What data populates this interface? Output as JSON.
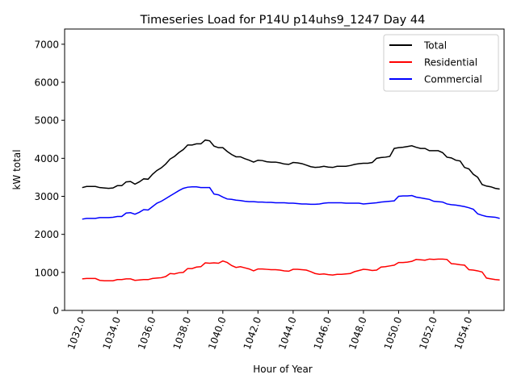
{
  "chart_data": {
    "type": "line",
    "title": "Timeseries Load for P14U p14uhs9_1247  Day 44",
    "xlabel": "Hour of Year",
    "ylabel": "kW total",
    "xlim": [
      1031.0,
      1056.0
    ],
    "ylim": [
      0,
      7400
    ],
    "x_ticks": [
      1032,
      1034,
      1036,
      1038,
      1040,
      1042,
      1044,
      1046,
      1048,
      1050,
      1052,
      1054
    ],
    "x_tick_labels": [
      "1032.0",
      "1034.0",
      "1036.0",
      "1038.0",
      "1040.0",
      "1042.0",
      "1044.0",
      "1046.0",
      "1048.0",
      "1050.0",
      "1052.0",
      "1054.0"
    ],
    "y_ticks": [
      0,
      1000,
      2000,
      3000,
      4000,
      5000,
      6000,
      7000
    ],
    "y_tick_labels": [
      "0",
      "1000",
      "2000",
      "3000",
      "4000",
      "5000",
      "6000",
      "7000"
    ],
    "grid": false,
    "legend_position": "top-right",
    "x": [
      1032.0,
      1032.25,
      1032.5,
      1032.75,
      1033.0,
      1033.25,
      1033.5,
      1033.75,
      1034.0,
      1034.25,
      1034.5,
      1034.75,
      1035.0,
      1035.25,
      1035.5,
      1035.75,
      1036.0,
      1036.25,
      1036.5,
      1036.75,
      1037.0,
      1037.25,
      1037.5,
      1037.75,
      1038.0,
      1038.25,
      1038.5,
      1038.75,
      1039.0,
      1039.25,
      1039.5,
      1039.75,
      1040.0,
      1040.25,
      1040.5,
      1040.75,
      1041.0,
      1041.25,
      1041.5,
      1041.75,
      1042.0,
      1042.25,
      1042.5,
      1042.75,
      1043.0,
      1043.25,
      1043.5,
      1043.75,
      1044.0,
      1044.25,
      1044.5,
      1044.75,
      1045.0,
      1045.25,
      1045.5,
      1045.75,
      1046.0,
      1046.25,
      1046.5,
      1046.75,
      1047.0,
      1047.25,
      1047.5,
      1047.75,
      1048.0,
      1048.25,
      1048.5,
      1048.75,
      1049.0,
      1049.25,
      1049.5,
      1049.75,
      1050.0,
      1050.25,
      1050.5,
      1050.75,
      1051.0,
      1051.25,
      1051.5,
      1051.75,
      1052.0,
      1052.25,
      1052.5,
      1052.75,
      1053.0,
      1053.25,
      1053.5,
      1053.75,
      1054.0,
      1054.25,
      1054.5,
      1054.75,
      1055.0,
      1055.25,
      1055.5,
      1055.75
    ],
    "series": [
      {
        "name": "Total",
        "color": "#000000",
        "values": [
          3230,
          3260,
          3260,
          3260,
          3230,
          3220,
          3210,
          3220,
          3280,
          3280,
          3380,
          3390,
          3320,
          3380,
          3460,
          3450,
          3580,
          3680,
          3750,
          3850,
          3980,
          4050,
          4150,
          4230,
          4350,
          4350,
          4380,
          4380,
          4480,
          4460,
          4320,
          4280,
          4280,
          4180,
          4100,
          4040,
          4040,
          3990,
          3950,
          3900,
          3950,
          3940,
          3910,
          3900,
          3900,
          3880,
          3850,
          3840,
          3890,
          3880,
          3860,
          3820,
          3780,
          3760,
          3770,
          3790,
          3770,
          3760,
          3790,
          3790,
          3790,
          3810,
          3840,
          3860,
          3870,
          3870,
          3890,
          4000,
          4020,
          4030,
          4050,
          4260,
          4280,
          4290,
          4310,
          4330,
          4290,
          4260,
          4260,
          4200,
          4200,
          4200,
          4150,
          4030,
          4010,
          3950,
          3930,
          3760,
          3720,
          3580,
          3500,
          3310,
          3270,
          3250,
          3210,
          3190
        ]
      },
      {
        "name": "Residential",
        "color": "#ff0000",
        "values": [
          830,
          840,
          840,
          840,
          790,
          780,
          780,
          780,
          810,
          810,
          830,
          830,
          790,
          800,
          810,
          810,
          840,
          850,
          860,
          890,
          970,
          960,
          990,
          1000,
          1100,
          1100,
          1140,
          1150,
          1250,
          1240,
          1250,
          1240,
          1300,
          1260,
          1180,
          1130,
          1150,
          1120,
          1090,
          1040,
          1090,
          1090,
          1080,
          1070,
          1070,
          1060,
          1040,
          1030,
          1080,
          1080,
          1070,
          1060,
          1020,
          970,
          950,
          960,
          940,
          930,
          950,
          950,
          960,
          970,
          1020,
          1050,
          1080,
          1070,
          1050,
          1060,
          1140,
          1150,
          1170,
          1190,
          1260,
          1260,
          1270,
          1290,
          1340,
          1330,
          1320,
          1350,
          1340,
          1350,
          1350,
          1340,
          1230,
          1220,
          1200,
          1190,
          1070,
          1060,
          1040,
          1010,
          850,
          830,
          810,
          800
        ]
      },
      {
        "name": "Commercial",
        "color": "#0000ff",
        "values": [
          2400,
          2420,
          2420,
          2420,
          2440,
          2440,
          2440,
          2450,
          2470,
          2470,
          2560,
          2570,
          2530,
          2580,
          2650,
          2640,
          2730,
          2820,
          2870,
          2940,
          3010,
          3080,
          3150,
          3210,
          3240,
          3250,
          3250,
          3230,
          3230,
          3230,
          3060,
          3040,
          2980,
          2930,
          2920,
          2900,
          2890,
          2870,
          2860,
          2860,
          2850,
          2850,
          2840,
          2840,
          2830,
          2830,
          2830,
          2820,
          2820,
          2810,
          2800,
          2800,
          2790,
          2790,
          2800,
          2820,
          2830,
          2830,
          2830,
          2830,
          2820,
          2820,
          2820,
          2820,
          2800,
          2810,
          2820,
          2830,
          2850,
          2860,
          2870,
          2880,
          3000,
          3010,
          3010,
          3020,
          2980,
          2960,
          2940,
          2920,
          2870,
          2860,
          2850,
          2800,
          2780,
          2770,
          2750,
          2730,
          2700,
          2660,
          2540,
          2500,
          2470,
          2460,
          2450,
          2420
        ]
      }
    ]
  }
}
